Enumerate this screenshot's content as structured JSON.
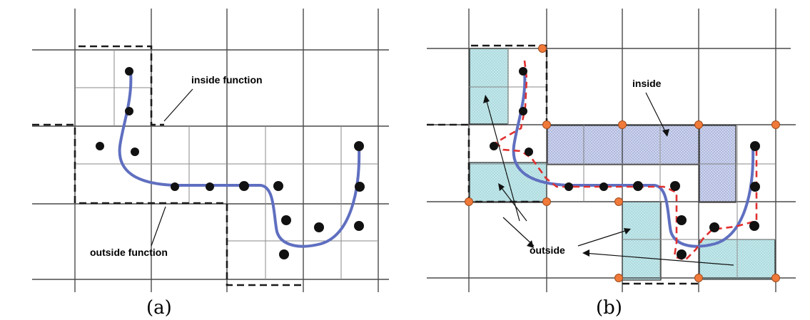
{
  "panel_a": {
    "caption": "(a)",
    "labels": {
      "inside": "inside function",
      "outside": "outside function"
    }
  },
  "panel_b": {
    "caption": "(b)",
    "labels": {
      "inside": "inside",
      "outside": "outside"
    }
  },
  "colors": {
    "grid": "#4a4a4a",
    "fine_grid": "#8a8a8a",
    "boundary": "#1a1a1a",
    "curve": "#5f6fc0",
    "points": "#111111",
    "outside_fill": "#bfe6e9",
    "inside_fill": "#c4cde8",
    "red_boundary": "#e03030",
    "corner_nodes": "#f07a3a"
  }
}
